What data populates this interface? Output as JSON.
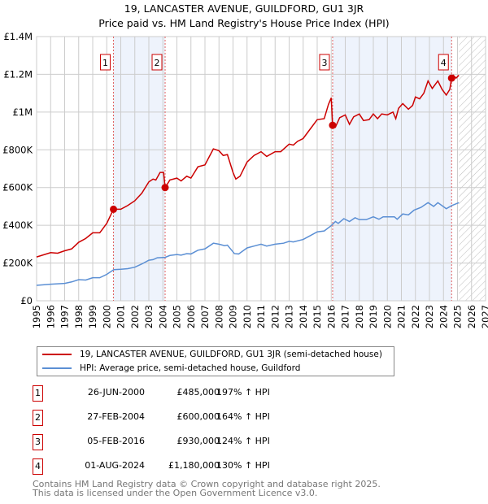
{
  "chart_data": {
    "type": "line",
    "title": "19, LANCASTER AVENUE, GUILDFORD, GU1 3JR",
    "subtitle": "Price paid vs. HM Land Registry's House Price Index (HPI)",
    "xlim": [
      1995,
      2027
    ],
    "ylim": [
      0,
      1400000
    ],
    "y_ticks": [
      {
        "v": 0,
        "label": "£0"
      },
      {
        "v": 200000,
        "label": "£200K"
      },
      {
        "v": 400000,
        "label": "£400K"
      },
      {
        "v": 600000,
        "label": "£600K"
      },
      {
        "v": 800000,
        "label": "£800K"
      },
      {
        "v": 1000000,
        "label": "£1M"
      },
      {
        "v": 1200000,
        "label": "£1.2M"
      },
      {
        "v": 1400000,
        "label": "£1.4M"
      }
    ],
    "x_ticks": [
      "1995",
      "1996",
      "1997",
      "1998",
      "1999",
      "2000",
      "2001",
      "2002",
      "2003",
      "2004",
      "2005",
      "2006",
      "2007",
      "2008",
      "2009",
      "2010",
      "2011",
      "2012",
      "2013",
      "2014",
      "2015",
      "2016",
      "2017",
      "2018",
      "2019",
      "2020",
      "2021",
      "2022",
      "2023",
      "2024",
      "2025",
      "2026",
      "2027"
    ],
    "grid": true,
    "forecast_hatch_from": 2025.1,
    "shaded_ranges": [
      [
        2000.48,
        2004.16
      ],
      [
        2016.1,
        2024.58
      ]
    ],
    "series": [
      {
        "name": "19, LANCASTER AVENUE, GUILDFORD, GU1 3JR (semi-detached house)",
        "color": "#cc0000",
        "points": [
          [
            1995,
            232
          ],
          [
            1996,
            255
          ],
          [
            1996.5,
            252
          ],
          [
            1997,
            265
          ],
          [
            1997.5,
            275
          ],
          [
            1998,
            310
          ],
          [
            1998.5,
            330
          ],
          [
            1999,
            360
          ],
          [
            1999.5,
            360
          ],
          [
            2000,
            410
          ],
          [
            2000.48,
            485
          ],
          [
            2001,
            485
          ],
          [
            2001.5,
            505
          ],
          [
            2002,
            530
          ],
          [
            2002.5,
            570
          ],
          [
            2003,
            630
          ],
          [
            2003.3,
            645
          ],
          [
            2003.5,
            640
          ],
          [
            2003.8,
            680
          ],
          [
            2004.05,
            680
          ],
          [
            2004.16,
            600
          ],
          [
            2004.5,
            640
          ],
          [
            2005,
            650
          ],
          [
            2005.3,
            635
          ],
          [
            2005.7,
            660
          ],
          [
            2006,
            650
          ],
          [
            2006.5,
            710
          ],
          [
            2007,
            720
          ],
          [
            2007.6,
            805
          ],
          [
            2008,
            795
          ],
          [
            2008.3,
            770
          ],
          [
            2008.6,
            775
          ],
          [
            2009,
            680
          ],
          [
            2009.2,
            645
          ],
          [
            2009.5,
            660
          ],
          [
            2010,
            735
          ],
          [
            2010.5,
            770
          ],
          [
            2011,
            790
          ],
          [
            2011.4,
            765
          ],
          [
            2012,
            790
          ],
          [
            2012.4,
            790
          ],
          [
            2013,
            830
          ],
          [
            2013.3,
            825
          ],
          [
            2013.6,
            845
          ],
          [
            2014,
            860
          ],
          [
            2014.5,
            910
          ],
          [
            2015,
            960
          ],
          [
            2015.5,
            965
          ],
          [
            2015.8,
            1040
          ],
          [
            2016.0,
            1075
          ],
          [
            2016.1,
            930
          ],
          [
            2016.3,
            920
          ],
          [
            2016.6,
            970
          ],
          [
            2017,
            985
          ],
          [
            2017.3,
            935
          ],
          [
            2017.6,
            975
          ],
          [
            2018,
            990
          ],
          [
            2018.3,
            955
          ],
          [
            2018.7,
            960
          ],
          [
            2019,
            990
          ],
          [
            2019.3,
            965
          ],
          [
            2019.6,
            990
          ],
          [
            2020,
            985
          ],
          [
            2020.4,
            1000
          ],
          [
            2020.6,
            965
          ],
          [
            2020.8,
            1020
          ],
          [
            2021.1,
            1045
          ],
          [
            2021.5,
            1015
          ],
          [
            2021.8,
            1035
          ],
          [
            2022,
            1080
          ],
          [
            2022.3,
            1070
          ],
          [
            2022.6,
            1100
          ],
          [
            2022.9,
            1165
          ],
          [
            2023.2,
            1125
          ],
          [
            2023.6,
            1165
          ],
          [
            2023.9,
            1120
          ],
          [
            2024.2,
            1090
          ],
          [
            2024.45,
            1120
          ],
          [
            2024.58,
            1180
          ],
          [
            2024.7,
            1195
          ],
          [
            2024.9,
            1180
          ],
          [
            2025.1,
            1195
          ]
        ]
      },
      {
        "name": "HPI: Average price, semi-detached house, Guildford",
        "color": "#5b8fd4",
        "points": [
          [
            1995,
            82
          ],
          [
            1996,
            88
          ],
          [
            1997,
            92
          ],
          [
            1997.5,
            100
          ],
          [
            1998,
            112
          ],
          [
            1998.5,
            110
          ],
          [
            1999,
            122
          ],
          [
            1999.5,
            122
          ],
          [
            2000,
            140
          ],
          [
            2000.5,
            165
          ],
          [
            2001,
            167
          ],
          [
            2001.5,
            170
          ],
          [
            2002,
            178
          ],
          [
            2002.5,
            195
          ],
          [
            2003,
            215
          ],
          [
            2003.3,
            218
          ],
          [
            2003.6,
            228
          ],
          [
            2004.16,
            230
          ],
          [
            2004.5,
            240
          ],
          [
            2005,
            245
          ],
          [
            2005.3,
            242
          ],
          [
            2005.7,
            250
          ],
          [
            2006,
            248
          ],
          [
            2006.5,
            268
          ],
          [
            2007,
            275
          ],
          [
            2007.6,
            305
          ],
          [
            2008,
            300
          ],
          [
            2008.4,
            292
          ],
          [
            2008.6,
            295
          ],
          [
            2009.1,
            250
          ],
          [
            2009.4,
            248
          ],
          [
            2010,
            280
          ],
          [
            2010.5,
            290
          ],
          [
            2011,
            300
          ],
          [
            2011.4,
            290
          ],
          [
            2012,
            300
          ],
          [
            2012.6,
            305
          ],
          [
            2013,
            315
          ],
          [
            2013.3,
            312
          ],
          [
            2014,
            325
          ],
          [
            2014.5,
            345
          ],
          [
            2015,
            365
          ],
          [
            2015.5,
            370
          ],
          [
            2016,
            398
          ],
          [
            2016.3,
            420
          ],
          [
            2016.5,
            410
          ],
          [
            2016.9,
            435
          ],
          [
            2017.3,
            420
          ],
          [
            2017.7,
            440
          ],
          [
            2018,
            430
          ],
          [
            2018.5,
            430
          ],
          [
            2019,
            445
          ],
          [
            2019.4,
            432
          ],
          [
            2019.7,
            445
          ],
          [
            2020.5,
            445
          ],
          [
            2020.7,
            432
          ],
          [
            2021.1,
            460
          ],
          [
            2021.5,
            455
          ],
          [
            2021.9,
            480
          ],
          [
            2022.4,
            495
          ],
          [
            2022.9,
            520
          ],
          [
            2023.3,
            500
          ],
          [
            2023.6,
            520
          ],
          [
            2024.2,
            488
          ],
          [
            2024.6,
            505
          ],
          [
            2025.1,
            520
          ]
        ]
      }
    ],
    "sales": [
      {
        "n": "1",
        "x": 2000.48,
        "value": 485000,
        "date": "26-JUN-2000",
        "price": "£485,000",
        "hpi": "197% ↑ HPI"
      },
      {
        "n": "2",
        "x": 2004.16,
        "value": 600000,
        "date": "27-FEB-2004",
        "price": "£600,000",
        "hpi": "164% ↑ HPI"
      },
      {
        "n": "3",
        "x": 2016.1,
        "value": 930000,
        "date": "05-FEB-2016",
        "price": "£930,000",
        "hpi": "124% ↑ HPI"
      },
      {
        "n": "4",
        "x": 2024.58,
        "value": 1180000,
        "date": "01-AUG-2024",
        "price": "£1,180,000",
        "hpi": "130% ↑ HPI"
      }
    ]
  },
  "footer": {
    "line1": "Contains HM Land Registry data © Crown copyright and database right 2025.",
    "line2": "This data is licensed under the Open Government Licence v3.0."
  }
}
